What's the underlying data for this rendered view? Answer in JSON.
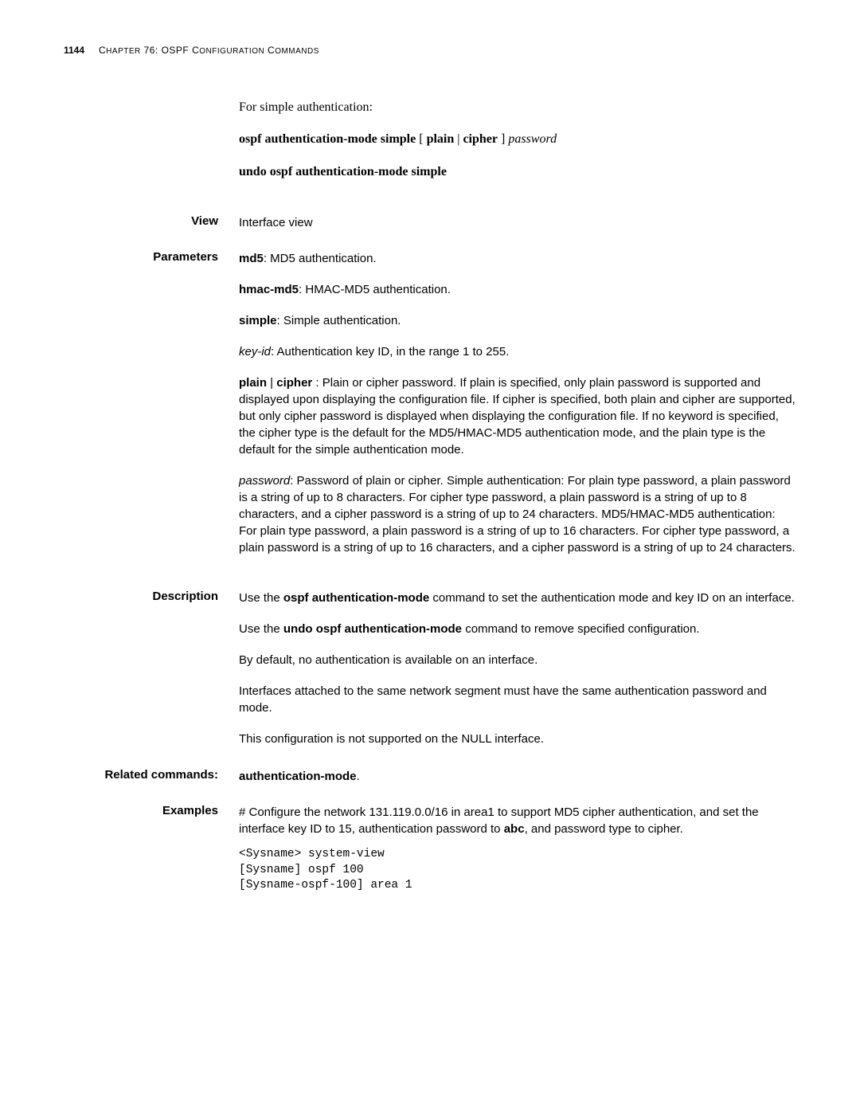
{
  "header": {
    "page_number": "1144",
    "chapter_prefix": "C",
    "chapter_rest": "HAPTER",
    "chapter_num": " 76: OSPF C",
    "chapter_tail": "ONFIGURATION",
    "chapter_tail2": " C",
    "chapter_tail3": "OMMANDS"
  },
  "intro": {
    "line1": "For simple authentication:",
    "syntax_parts": {
      "p1": "ospf authentication-mode simple",
      "p2": " [ ",
      "p3": "plain",
      "p4": " | ",
      "p5": "cipher",
      "p6": " ] ",
      "p7": "password"
    },
    "undo": "undo ospf authentication-mode simple"
  },
  "view": {
    "label": "View",
    "text": "Interface view"
  },
  "parameters": {
    "label": "Parameters",
    "md5_b": "md5",
    "md5_t": ": MD5 authentication.",
    "hmac_b": "hmac-md5",
    "hmac_t": ": HMAC-MD5 authentication.",
    "simple_b": "simple",
    "simple_t": ": Simple authentication.",
    "keyid_i": "key-id",
    "keyid_t": ": Authentication key ID, in the range 1 to 255.",
    "plain_b1": "plain",
    "plain_sep": " | ",
    "plain_b2": "cipher",
    "plain_t": " : Plain or cipher password. If plain is specified, only plain password is supported and displayed upon displaying the configuration file. If cipher is specified, both plain and cipher are supported, but only cipher password is displayed when displaying the configuration file. If no keyword is specified, the cipher type is the default for the MD5/HMAC-MD5 authentication mode, and the plain type is the default for the simple authentication mode.",
    "password_i": "password",
    "password_t": ": Password of plain or cipher. Simple authentication: For plain type password, a plain password is a string of up to 8 characters. For cipher type password, a plain password is a string of up to 8 characters, and a cipher password is a string of up to 24 characters. MD5/HMAC-MD5 authentication: For plain type password, a plain password is a string of up to 16 characters. For cipher type password, a plain password is a string of up to 16 characters, and a cipher password is a string of up to 24 characters."
  },
  "description": {
    "label": "Description",
    "p1_a": "Use the ",
    "p1_b": "ospf authentication-mode",
    "p1_c": " command to set the authentication mode and key ID on an interface.",
    "p2_a": "Use the ",
    "p2_b": "undo ospf authentication-mode",
    "p2_c": " command to remove specified configuration.",
    "p3": "By default, no authentication is available on an interface.",
    "p4": "Interfaces attached to the same network segment must have the same authentication password and mode.",
    "p5": "This configuration is not supported on the NULL interface."
  },
  "related": {
    "label": "Related commands:",
    "text_b": "authentication-mode",
    "text_t": "."
  },
  "examples": {
    "label": "Examples",
    "p1_a": "# Configure the network 131.119.0.0/16 in area1 to support MD5 cipher authentication, and set the interface key ID to 15, authentication password to ",
    "p1_b": "abc",
    "p1_c": ", and password type to cipher.",
    "code": "<Sysname> system-view\n[Sysname] ospf 100\n[Sysname-ospf-100] area 1"
  }
}
